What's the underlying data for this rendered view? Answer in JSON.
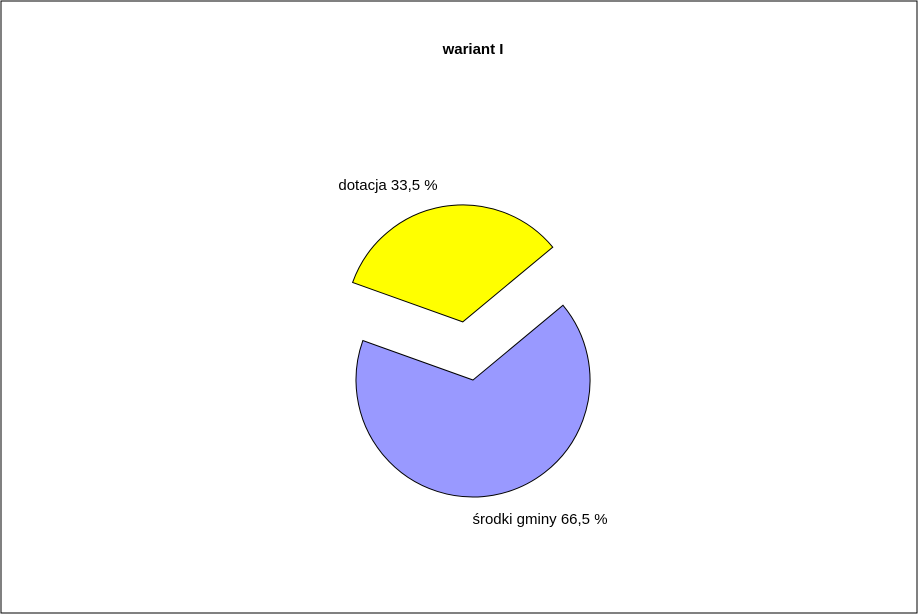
{
  "chart_data": {
    "type": "pie",
    "title": "wariant I",
    "categories": [
      "dotacja",
      "środki gminy"
    ],
    "values": [
      33.5,
      66.5
    ],
    "value_labels": [
      "dotacja 33,5 %",
      "środki gminy 66,5 %"
    ],
    "colors": [
      "#ffff00",
      "#9999ff"
    ],
    "exploded": true
  }
}
